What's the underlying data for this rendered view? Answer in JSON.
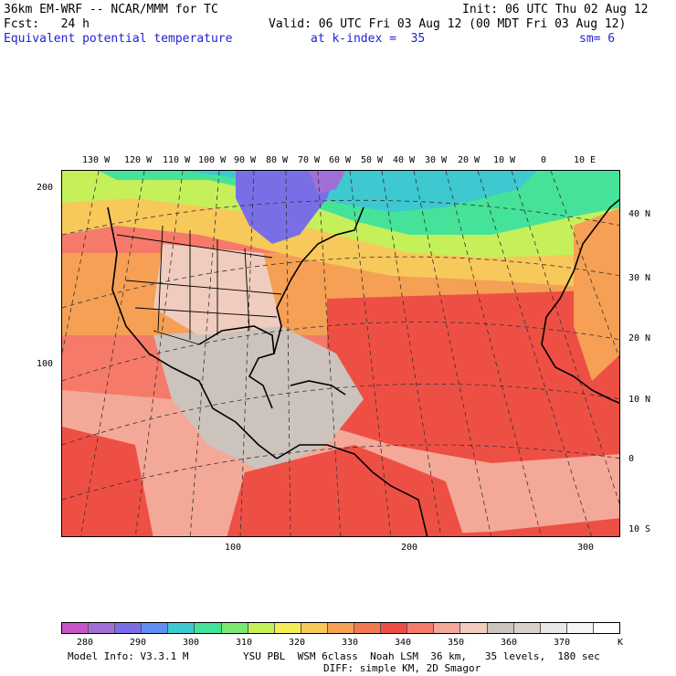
{
  "header": {
    "model_line": "36km EM-WRF -- NCAR/MMM for TC",
    "init_line": "Init: 06 UTC Thu 02 Aug 12",
    "fcst_line": "Fcst:   24 h",
    "valid_line": "Valid: 06 UTC Fri 03 Aug 12 (00 MDT Fri 03 Aug 12)",
    "field_name": "Equivalent potential temperature",
    "level": "at k-index =  35",
    "smoothing": "sm= 6"
  },
  "map": {
    "top_lon_labels": [
      "130 W",
      "120 W",
      "110 W",
      "100 W",
      "90 W",
      "80 W",
      "70 W",
      "60 W",
      "50 W",
      "40 W",
      "30 W",
      "20 W",
      "10 W",
      "0",
      "10 E"
    ],
    "right_lat_labels": [
      "40 N",
      "30 N",
      "20 N",
      "10 N",
      "0",
      "10 S"
    ],
    "left_grid_labels": [
      "200",
      "100"
    ],
    "bottom_grid_labels": [
      "100",
      "200",
      "300"
    ]
  },
  "colorbar": {
    "labels": [
      "280",
      "290",
      "300",
      "310",
      "320",
      "330",
      "340",
      "350",
      "360",
      "370"
    ],
    "unit": "K",
    "colors": [
      "#c855c8",
      "#a070d8",
      "#7a6ee6",
      "#5f8ff0",
      "#3ec8d0",
      "#45e39a",
      "#7ae870",
      "#c5f05a",
      "#f2ee55",
      "#f7c85a",
      "#f5a055",
      "#f07a50",
      "#ee4f45",
      "#f57a6a",
      "#f4a898",
      "#f0ccbe",
      "#ccc3bc",
      "#d8d0cb",
      "#e8e8e8",
      "#f6f6f6",
      "#ffffff"
    ]
  },
  "footer": {
    "line1_left": "Model Info: V3.3.1 M",
    "line1_right": "YSU PBL  WSM 6class  Noah LSM  36 km,   35 levels,  180 sec",
    "line2": "DIFF: simple KM, 2D Smagor"
  }
}
